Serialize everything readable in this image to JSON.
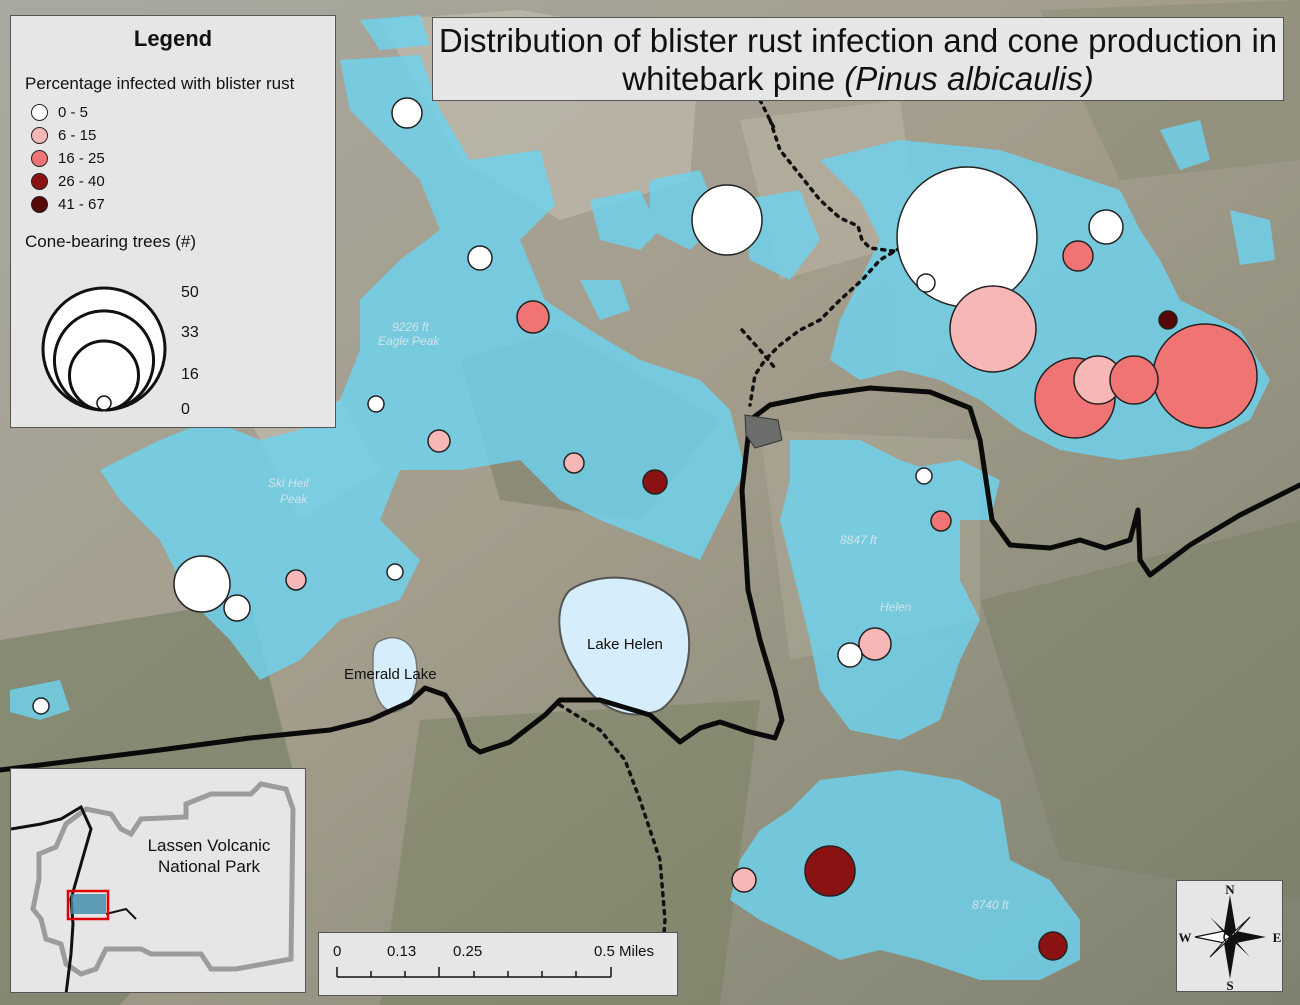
{
  "title": {
    "line1": "Distribution of blister rust infection and cone production in",
    "line2_plain": "whitebark pine ",
    "line2_italic": "(Pinus albicaulis)"
  },
  "legend": {
    "heading": "Legend",
    "infection_title": "Percentage infected with blister rust",
    "infection_classes": [
      {
        "label": "0 - 5",
        "color": "#ffffff"
      },
      {
        "label": "6 - 15",
        "color": "#f7b7b7"
      },
      {
        "label": "16 - 25",
        "color": "#f07474"
      },
      {
        "label": "26 - 40",
        "color": "#8b1212"
      },
      {
        "label": "41 - 67",
        "color": "#560707"
      }
    ],
    "cone_title": "Cone-bearing trees (#)",
    "cone_sizes": [
      {
        "label": "50",
        "value": 50
      },
      {
        "label": "33",
        "value": 33
      },
      {
        "label": "16",
        "value": 16
      },
      {
        "label": "0",
        "value": 0
      }
    ]
  },
  "map_labels": {
    "lake_helen": "Lake Helen",
    "emerald_lake": "Emerald Lake",
    "faint_eagle_elev": "9226 ft",
    "faint_eagle": "Eagle Peak",
    "faint_ski_heil": "Ski Heil",
    "faint_ski_peak": "Peak",
    "faint_8847": "8847 ft",
    "faint_helen": "Helen",
    "faint_8740": "8740 ft"
  },
  "inset": {
    "label": "Lassen Volcanic National Park"
  },
  "scale_bar": {
    "ticks": [
      "0",
      "0.13",
      "0.25",
      "0.5 Miles"
    ]
  },
  "north_arrow": {
    "n": "N",
    "s": "S",
    "e": "E",
    "w": "W"
  },
  "colors": {
    "habitat": "#6ed3ef",
    "road": "#0a0a0a",
    "lake_fill": "#d6eefb",
    "panel": "#e6e6e6"
  }
}
